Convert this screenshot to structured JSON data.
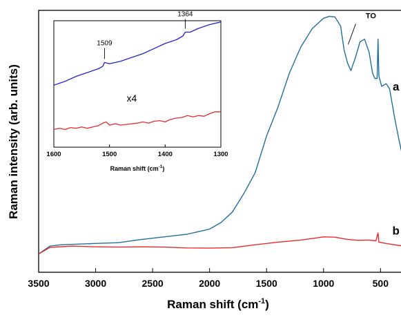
{
  "chart_data": [
    {
      "type": "line",
      "xlabel": "Raman shift (cm",
      "xlabel_sup": "-1",
      "xlabel_close": ")",
      "ylabel": "Raman intensity (arb. units)",
      "xlim": [
        3500,
        290
      ],
      "ylim": [
        0,
        100
      ],
      "x_reversed": true,
      "xticks": [
        3500,
        3000,
        2500,
        2000,
        1500,
        1000,
        500
      ],
      "grid": false,
      "series": [
        {
          "name": "a",
          "color": "#1f6f9a",
          "points": [
            [
              3500,
              7
            ],
            [
              3400,
              10
            ],
            [
              3300,
              10.5
            ],
            [
              3000,
              11
            ],
            [
              2800,
              11.3
            ],
            [
              2600,
              12.5
            ],
            [
              2400,
              13.5
            ],
            [
              2200,
              14.5
            ],
            [
              2100,
              15.5
            ],
            [
              2000,
              16.5
            ],
            [
              1900,
              19
            ],
            [
              1800,
              23
            ],
            [
              1700,
              30
            ],
            [
              1600,
              38
            ],
            [
              1500,
              52
            ],
            [
              1400,
              63
            ],
            [
              1300,
              76
            ],
            [
              1200,
              86
            ],
            [
              1100,
              93
            ],
            [
              1000,
              97
            ],
            [
              950,
              97.7
            ],
            [
              900,
              97.5
            ],
            [
              850,
              94
            ],
            [
              820,
              85
            ],
            [
              790,
              80
            ],
            [
              760,
              77
            ],
            [
              720,
              82
            ],
            [
              680,
              88
            ],
            [
              640,
              89
            ],
            [
              600,
              84
            ],
            [
              570,
              76
            ],
            [
              550,
              74
            ],
            [
              530,
              74
            ],
            [
              522,
              89
            ],
            [
              515,
              75
            ],
            [
              490,
              71
            ],
            [
              450,
              72
            ],
            [
              420,
              70
            ],
            [
              380,
              60
            ],
            [
              340,
              51
            ],
            [
              300,
              43
            ]
          ]
        },
        {
          "name": "b",
          "color": "#e8292e",
          "points": [
            [
              3500,
              7
            ],
            [
              3400,
              9.5
            ],
            [
              3200,
              10
            ],
            [
              3000,
              9.7
            ],
            [
              2800,
              9.6
            ],
            [
              2600,
              9.7
            ],
            [
              2400,
              9.6
            ],
            [
              2200,
              9.3
            ],
            [
              2000,
              9.2
            ],
            [
              1800,
              9.4
            ],
            [
              1600,
              10.5
            ],
            [
              1400,
              11.5
            ],
            [
              1200,
              12.3
            ],
            [
              1000,
              13.5
            ],
            [
              900,
              13.4
            ],
            [
              800,
              12.6
            ],
            [
              700,
              12.2
            ],
            [
              600,
              12.3
            ],
            [
              540,
              12
            ],
            [
              522,
              15
            ],
            [
              515,
              11.5
            ],
            [
              450,
              11
            ],
            [
              380,
              10.5
            ],
            [
              300,
              10
            ]
          ]
        }
      ],
      "annotations": [
        {
          "text": "a",
          "x": 340,
          "y": 71
        },
        {
          "text": "b",
          "x": 340,
          "y": 16
        },
        {
          "text": "TO",
          "x": 560,
          "y": 97
        }
      ]
    },
    {
      "type": "line",
      "inset": true,
      "xlabel": "Raman shift (cm",
      "xlabel_sup": "-1",
      "xlabel_close": ")",
      "xlim": [
        1600,
        1300
      ],
      "ylim": [
        0,
        100
      ],
      "x_reversed": true,
      "xticks": [
        1600,
        1500,
        1400,
        1300
      ],
      "series": [
        {
          "name": "",
          "color": "#2121d0",
          "points": [
            [
              1600,
              49
            ],
            [
              1580,
              52
            ],
            [
              1560,
              56
            ],
            [
              1540,
              59
            ],
            [
              1520,
              62
            ],
            [
              1512,
              64
            ],
            [
              1509,
              67
            ],
            [
              1500,
              66
            ],
            [
              1480,
              68
            ],
            [
              1460,
              71
            ],
            [
              1440,
              74
            ],
            [
              1420,
              78
            ],
            [
              1400,
              82
            ],
            [
              1380,
              85
            ],
            [
              1368,
              88
            ],
            [
              1364,
              91
            ],
            [
              1355,
              91
            ],
            [
              1340,
              94
            ],
            [
              1320,
              97
            ],
            [
              1300,
              99
            ]
          ]
        },
        {
          "name": "",
          "color": "#e8292e",
          "points": [
            [
              1600,
              14
            ],
            [
              1590,
              15
            ],
            [
              1580,
              14
            ],
            [
              1570,
              15.5
            ],
            [
              1560,
              15
            ],
            [
              1550,
              16
            ],
            [
              1540,
              15
            ],
            [
              1530,
              16
            ],
            [
              1520,
              17
            ],
            [
              1512,
              19
            ],
            [
              1506,
              20
            ],
            [
              1500,
              17.5
            ],
            [
              1490,
              18.5
            ],
            [
              1480,
              17.5
            ],
            [
              1470,
              18
            ],
            [
              1460,
              18.5
            ],
            [
              1450,
              19
            ],
            [
              1440,
              20
            ],
            [
              1430,
              19
            ],
            [
              1420,
              20.5
            ],
            [
              1410,
              21
            ],
            [
              1400,
              20
            ],
            [
              1390,
              22
            ],
            [
              1380,
              23
            ],
            [
              1370,
              23.5
            ],
            [
              1360,
              25
            ],
            [
              1350,
              24
            ],
            [
              1340,
              25
            ],
            [
              1330,
              24.5
            ],
            [
              1320,
              26.5
            ],
            [
              1310,
              28
            ],
            [
              1300,
              28
            ]
          ]
        }
      ],
      "annotations": [
        {
          "text": "1509",
          "x": 1509,
          "y": 67
        },
        {
          "text": "1364",
          "x": 1364,
          "y": 91
        },
        {
          "text": "x4",
          "x": 1460,
          "y": 36
        }
      ]
    }
  ]
}
